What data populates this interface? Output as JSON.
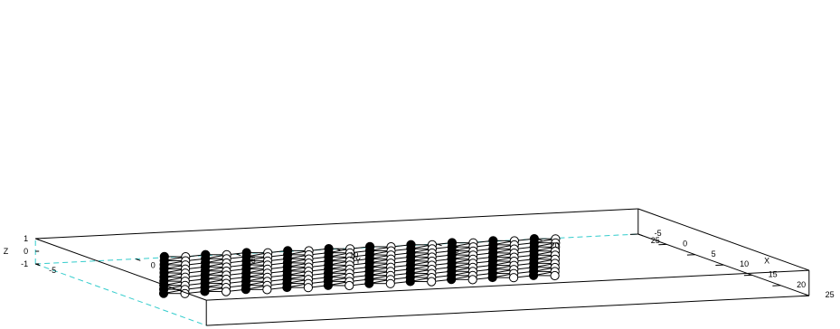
{
  "chart_data": {
    "type": "scatter",
    "subtype": "3d-lattice",
    "description_note": "",
    "axes": {
      "x": {
        "label": "X",
        "range": [
          -5,
          25
        ],
        "ticks": [
          "-5",
          "0",
          "5",
          "10",
          "15",
          "20",
          "25"
        ]
      },
      "y": {
        "label": "Y",
        "range": [
          -5,
          25
        ],
        "ticks": [
          "-5",
          "0",
          "5",
          "10",
          "15",
          "20",
          "25"
        ]
      },
      "z": {
        "label": "Z",
        "range": [
          -1,
          1
        ],
        "ticks": [
          "-1",
          "0",
          "1"
        ]
      }
    },
    "lattice": {
      "cells_a": 10,
      "cells_b": 10,
      "z": 0
    },
    "grid": false,
    "colors": {
      "filled_atom": "#000000",
      "open_atom": "#ffffff",
      "bond": "#000000",
      "box": "#000000",
      "hidden_edge": "#33cccc"
    }
  }
}
